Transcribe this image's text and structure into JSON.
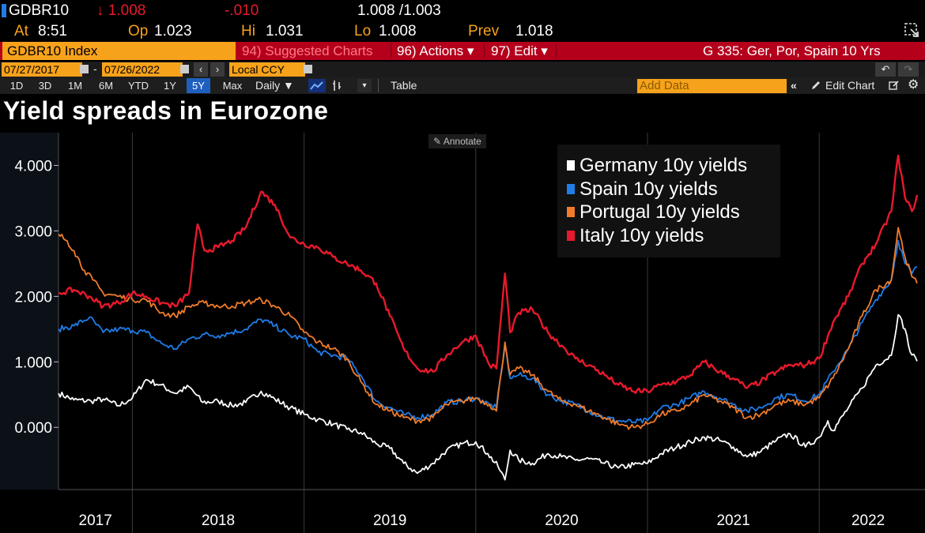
{
  "header": {
    "ticker": "GDBR10",
    "last": "↓ 1.008",
    "change": "-.010",
    "bid_ask": "1.008 /1.003",
    "at_label": "At",
    "at_value": "8:51",
    "op_label": "Op",
    "op_value": "1.023",
    "hi_label": "Hi",
    "hi_value": "1.031",
    "lo_label": "Lo",
    "lo_value": "1.008",
    "prev_label": "Prev",
    "prev_value": "1.018"
  },
  "function_bar": {
    "security": "GDBR10 Index",
    "suggested": "94) Suggested Charts",
    "actions": "96) Actions ▾",
    "edit": "97) Edit ▾",
    "chart_name": "G 335: Ger, Por, Spain 10 Yrs"
  },
  "toolbar": {
    "start_date": "07/27/2017",
    "end_date": "07/26/2022",
    "dash": "-",
    "currency": "Local CCY",
    "periods": [
      "1D",
      "3D",
      "1M",
      "6M",
      "YTD",
      "1Y",
      "5Y",
      "Max"
    ],
    "selected_period": "5Y",
    "frequency": "Daily ▼",
    "table": "Table",
    "add_data_placeholder": "Add Data",
    "edit_chart": "Edit Chart"
  },
  "annotate_label": "Annotate",
  "chart_data": {
    "type": "line",
    "title": "Yield spreads in Eurozone",
    "xlabel": "",
    "ylabel": "",
    "ylim": [
      -0.95,
      4.5
    ],
    "xlim": [
      2017.57,
      2022.57
    ],
    "yticks": [
      0,
      1,
      2,
      3,
      4
    ],
    "ytick_labels": [
      "0.000",
      "1.000",
      "2.000",
      "3.000",
      "4.000"
    ],
    "x_periods": [
      "2017",
      "2018",
      "2019",
      "2020",
      "2021",
      "2022"
    ],
    "legend_position": "top-right",
    "series": [
      {
        "name": "Germany 10y yields",
        "color": "#ffffff",
        "points": [
          [
            2017.57,
            0.52
          ],
          [
            2017.66,
            0.42
          ],
          [
            2017.76,
            0.4
          ],
          [
            2017.83,
            0.43
          ],
          [
            2017.92,
            0.33
          ],
          [
            2018.0,
            0.45
          ],
          [
            2018.08,
            0.73
          ],
          [
            2018.16,
            0.65
          ],
          [
            2018.25,
            0.52
          ],
          [
            2018.33,
            0.62
          ],
          [
            2018.41,
            0.38
          ],
          [
            2018.5,
            0.4
          ],
          [
            2018.58,
            0.33
          ],
          [
            2018.66,
            0.38
          ],
          [
            2018.75,
            0.55
          ],
          [
            2018.83,
            0.43
          ],
          [
            2018.92,
            0.3
          ],
          [
            2019.0,
            0.2
          ],
          [
            2019.08,
            0.12
          ],
          [
            2019.17,
            0.05
          ],
          [
            2019.25,
            -0.03
          ],
          [
            2019.33,
            -0.08
          ],
          [
            2019.42,
            -0.25
          ],
          [
            2019.5,
            -0.32
          ],
          [
            2019.58,
            -0.55
          ],
          [
            2019.66,
            -0.7
          ],
          [
            2019.75,
            -0.55
          ],
          [
            2019.83,
            -0.35
          ],
          [
            2019.92,
            -0.25
          ],
          [
            2020.0,
            -0.22
          ],
          [
            2020.07,
            -0.4
          ],
          [
            2020.13,
            -0.6
          ],
          [
            2020.17,
            -0.8
          ],
          [
            2020.2,
            -0.35
          ],
          [
            2020.25,
            -0.5
          ],
          [
            2020.33,
            -0.55
          ],
          [
            2020.42,
            -0.4
          ],
          [
            2020.5,
            -0.45
          ],
          [
            2020.58,
            -0.5
          ],
          [
            2020.66,
            -0.48
          ],
          [
            2020.75,
            -0.55
          ],
          [
            2020.83,
            -0.62
          ],
          [
            2020.92,
            -0.57
          ],
          [
            2021.0,
            -0.55
          ],
          [
            2021.08,
            -0.4
          ],
          [
            2021.17,
            -0.3
          ],
          [
            2021.25,
            -0.22
          ],
          [
            2021.33,
            -0.15
          ],
          [
            2021.42,
            -0.2
          ],
          [
            2021.5,
            -0.3
          ],
          [
            2021.58,
            -0.45
          ],
          [
            2021.66,
            -0.37
          ],
          [
            2021.75,
            -0.2
          ],
          [
            2021.83,
            -0.1
          ],
          [
            2021.92,
            -0.3
          ],
          [
            2022.0,
            -0.15
          ],
          [
            2022.05,
            0.1
          ],
          [
            2022.08,
            -0.05
          ],
          [
            2022.17,
            0.3
          ],
          [
            2022.25,
            0.6
          ],
          [
            2022.33,
            0.95
          ],
          [
            2022.42,
            1.1
          ],
          [
            2022.46,
            1.72
          ],
          [
            2022.5,
            1.5
          ],
          [
            2022.53,
            1.15
          ],
          [
            2022.57,
            1.01
          ]
        ]
      },
      {
        "name": "Spain 10y yields",
        "color": "#1f7ce8",
        "points": [
          [
            2017.57,
            1.5
          ],
          [
            2017.66,
            1.55
          ],
          [
            2017.75,
            1.68
          ],
          [
            2017.83,
            1.45
          ],
          [
            2017.92,
            1.5
          ],
          [
            2018.0,
            1.48
          ],
          [
            2018.08,
            1.45
          ],
          [
            2018.17,
            1.28
          ],
          [
            2018.25,
            1.2
          ],
          [
            2018.33,
            1.35
          ],
          [
            2018.42,
            1.42
          ],
          [
            2018.5,
            1.4
          ],
          [
            2018.58,
            1.45
          ],
          [
            2018.66,
            1.5
          ],
          [
            2018.75,
            1.65
          ],
          [
            2018.83,
            1.55
          ],
          [
            2018.92,
            1.4
          ],
          [
            2019.0,
            1.35
          ],
          [
            2019.08,
            1.15
          ],
          [
            2019.17,
            1.1
          ],
          [
            2019.25,
            1.05
          ],
          [
            2019.33,
            0.8
          ],
          [
            2019.42,
            0.4
          ],
          [
            2019.5,
            0.3
          ],
          [
            2019.58,
            0.2
          ],
          [
            2019.66,
            0.15
          ],
          [
            2019.75,
            0.2
          ],
          [
            2019.83,
            0.38
          ],
          [
            2019.92,
            0.4
          ],
          [
            2020.0,
            0.45
          ],
          [
            2020.08,
            0.35
          ],
          [
            2020.12,
            0.3
          ],
          [
            2020.17,
            1.25
          ],
          [
            2020.2,
            0.75
          ],
          [
            2020.25,
            0.8
          ],
          [
            2020.33,
            0.75
          ],
          [
            2020.42,
            0.5
          ],
          [
            2020.5,
            0.4
          ],
          [
            2020.58,
            0.35
          ],
          [
            2020.66,
            0.25
          ],
          [
            2020.75,
            0.15
          ],
          [
            2020.83,
            0.1
          ],
          [
            2020.92,
            0.08
          ],
          [
            2021.0,
            0.1
          ],
          [
            2021.08,
            0.3
          ],
          [
            2021.17,
            0.35
          ],
          [
            2021.25,
            0.45
          ],
          [
            2021.33,
            0.55
          ],
          [
            2021.42,
            0.45
          ],
          [
            2021.5,
            0.35
          ],
          [
            2021.58,
            0.25
          ],
          [
            2021.66,
            0.3
          ],
          [
            2021.75,
            0.45
          ],
          [
            2021.83,
            0.5
          ],
          [
            2021.92,
            0.4
          ],
          [
            2022.0,
            0.5
          ],
          [
            2022.08,
            0.85
          ],
          [
            2022.17,
            1.2
          ],
          [
            2022.25,
            1.6
          ],
          [
            2022.33,
            1.95
          ],
          [
            2022.42,
            2.25
          ],
          [
            2022.46,
            2.85
          ],
          [
            2022.5,
            2.5
          ],
          [
            2022.54,
            2.35
          ],
          [
            2022.57,
            2.45
          ]
        ]
      },
      {
        "name": "Portugal 10y yields",
        "color": "#f07c2a",
        "points": [
          [
            2017.57,
            2.95
          ],
          [
            2017.62,
            2.85
          ],
          [
            2017.66,
            2.7
          ],
          [
            2017.72,
            2.4
          ],
          [
            2017.77,
            2.25
          ],
          [
            2017.83,
            2.05
          ],
          [
            2017.92,
            2.0
          ],
          [
            2018.0,
            1.95
          ],
          [
            2018.08,
            1.95
          ],
          [
            2018.17,
            1.75
          ],
          [
            2018.25,
            1.7
          ],
          [
            2018.33,
            1.85
          ],
          [
            2018.42,
            1.9
          ],
          [
            2018.5,
            1.85
          ],
          [
            2018.58,
            1.85
          ],
          [
            2018.66,
            1.9
          ],
          [
            2018.75,
            1.95
          ],
          [
            2018.83,
            1.85
          ],
          [
            2018.92,
            1.7
          ],
          [
            2019.0,
            1.45
          ],
          [
            2019.08,
            1.3
          ],
          [
            2019.17,
            1.2
          ],
          [
            2019.25,
            1.05
          ],
          [
            2019.33,
            0.7
          ],
          [
            2019.42,
            0.35
          ],
          [
            2019.5,
            0.25
          ],
          [
            2019.58,
            0.15
          ],
          [
            2019.66,
            0.1
          ],
          [
            2019.75,
            0.15
          ],
          [
            2019.83,
            0.35
          ],
          [
            2019.92,
            0.4
          ],
          [
            2020.0,
            0.45
          ],
          [
            2020.08,
            0.35
          ],
          [
            2020.12,
            0.25
          ],
          [
            2020.17,
            1.3
          ],
          [
            2020.2,
            0.8
          ],
          [
            2020.25,
            0.9
          ],
          [
            2020.33,
            0.8
          ],
          [
            2020.42,
            0.55
          ],
          [
            2020.5,
            0.4
          ],
          [
            2020.58,
            0.35
          ],
          [
            2020.66,
            0.25
          ],
          [
            2020.75,
            0.15
          ],
          [
            2020.83,
            0.05
          ],
          [
            2020.92,
            0.0
          ],
          [
            2021.0,
            0.05
          ],
          [
            2021.08,
            0.2
          ],
          [
            2021.17,
            0.25
          ],
          [
            2021.25,
            0.35
          ],
          [
            2021.33,
            0.5
          ],
          [
            2021.42,
            0.4
          ],
          [
            2021.5,
            0.3
          ],
          [
            2021.58,
            0.15
          ],
          [
            2021.66,
            0.2
          ],
          [
            2021.75,
            0.35
          ],
          [
            2021.83,
            0.4
          ],
          [
            2021.92,
            0.35
          ],
          [
            2022.0,
            0.45
          ],
          [
            2022.08,
            0.75
          ],
          [
            2022.17,
            1.2
          ],
          [
            2022.25,
            1.7
          ],
          [
            2022.33,
            2.1
          ],
          [
            2022.42,
            2.25
          ],
          [
            2022.46,
            3.05
          ],
          [
            2022.5,
            2.6
          ],
          [
            2022.54,
            2.3
          ],
          [
            2022.57,
            2.2
          ]
        ]
      },
      {
        "name": "Italy 10y yields",
        "color": "#e8192c",
        "points": [
          [
            2017.57,
            2.05
          ],
          [
            2017.66,
            2.1
          ],
          [
            2017.75,
            2.0
          ],
          [
            2017.83,
            1.85
          ],
          [
            2017.92,
            1.9
          ],
          [
            2018.0,
            2.05
          ],
          [
            2018.08,
            2.0
          ],
          [
            2018.17,
            1.9
          ],
          [
            2018.25,
            1.85
          ],
          [
            2018.33,
            2.05
          ],
          [
            2018.38,
            3.1
          ],
          [
            2018.42,
            2.7
          ],
          [
            2018.5,
            2.75
          ],
          [
            2018.58,
            2.85
          ],
          [
            2018.66,
            3.05
          ],
          [
            2018.75,
            3.6
          ],
          [
            2018.83,
            3.4
          ],
          [
            2018.92,
            2.9
          ],
          [
            2019.0,
            2.8
          ],
          [
            2019.08,
            2.75
          ],
          [
            2019.17,
            2.6
          ],
          [
            2019.25,
            2.5
          ],
          [
            2019.33,
            2.4
          ],
          [
            2019.42,
            2.2
          ],
          [
            2019.5,
            1.7
          ],
          [
            2019.58,
            1.2
          ],
          [
            2019.66,
            0.9
          ],
          [
            2019.75,
            0.85
          ],
          [
            2019.83,
            1.1
          ],
          [
            2019.92,
            1.3
          ],
          [
            2020.0,
            1.4
          ],
          [
            2020.08,
            0.95
          ],
          [
            2020.12,
            0.9
          ],
          [
            2020.17,
            2.35
          ],
          [
            2020.2,
            1.45
          ],
          [
            2020.25,
            1.75
          ],
          [
            2020.33,
            1.8
          ],
          [
            2020.42,
            1.45
          ],
          [
            2020.5,
            1.25
          ],
          [
            2020.58,
            1.05
          ],
          [
            2020.66,
            0.95
          ],
          [
            2020.75,
            0.8
          ],
          [
            2020.83,
            0.65
          ],
          [
            2020.92,
            0.55
          ],
          [
            2021.0,
            0.55
          ],
          [
            2021.08,
            0.65
          ],
          [
            2021.17,
            0.7
          ],
          [
            2021.25,
            0.8
          ],
          [
            2021.33,
            1.0
          ],
          [
            2021.42,
            0.85
          ],
          [
            2021.5,
            0.75
          ],
          [
            2021.58,
            0.6
          ],
          [
            2021.66,
            0.7
          ],
          [
            2021.75,
            0.85
          ],
          [
            2021.83,
            0.95
          ],
          [
            2021.92,
            0.95
          ],
          [
            2022.0,
            1.05
          ],
          [
            2022.08,
            1.6
          ],
          [
            2022.17,
            2.0
          ],
          [
            2022.25,
            2.5
          ],
          [
            2022.33,
            2.8
          ],
          [
            2022.42,
            3.3
          ],
          [
            2022.46,
            4.15
          ],
          [
            2022.5,
            3.5
          ],
          [
            2022.54,
            3.3
          ],
          [
            2022.57,
            3.55
          ]
        ]
      }
    ]
  },
  "colors": {
    "bloomberg_orange": "#f7a21b",
    "bloomberg_red": "#b5001c",
    "selected_blue": "#1f5fbf"
  }
}
